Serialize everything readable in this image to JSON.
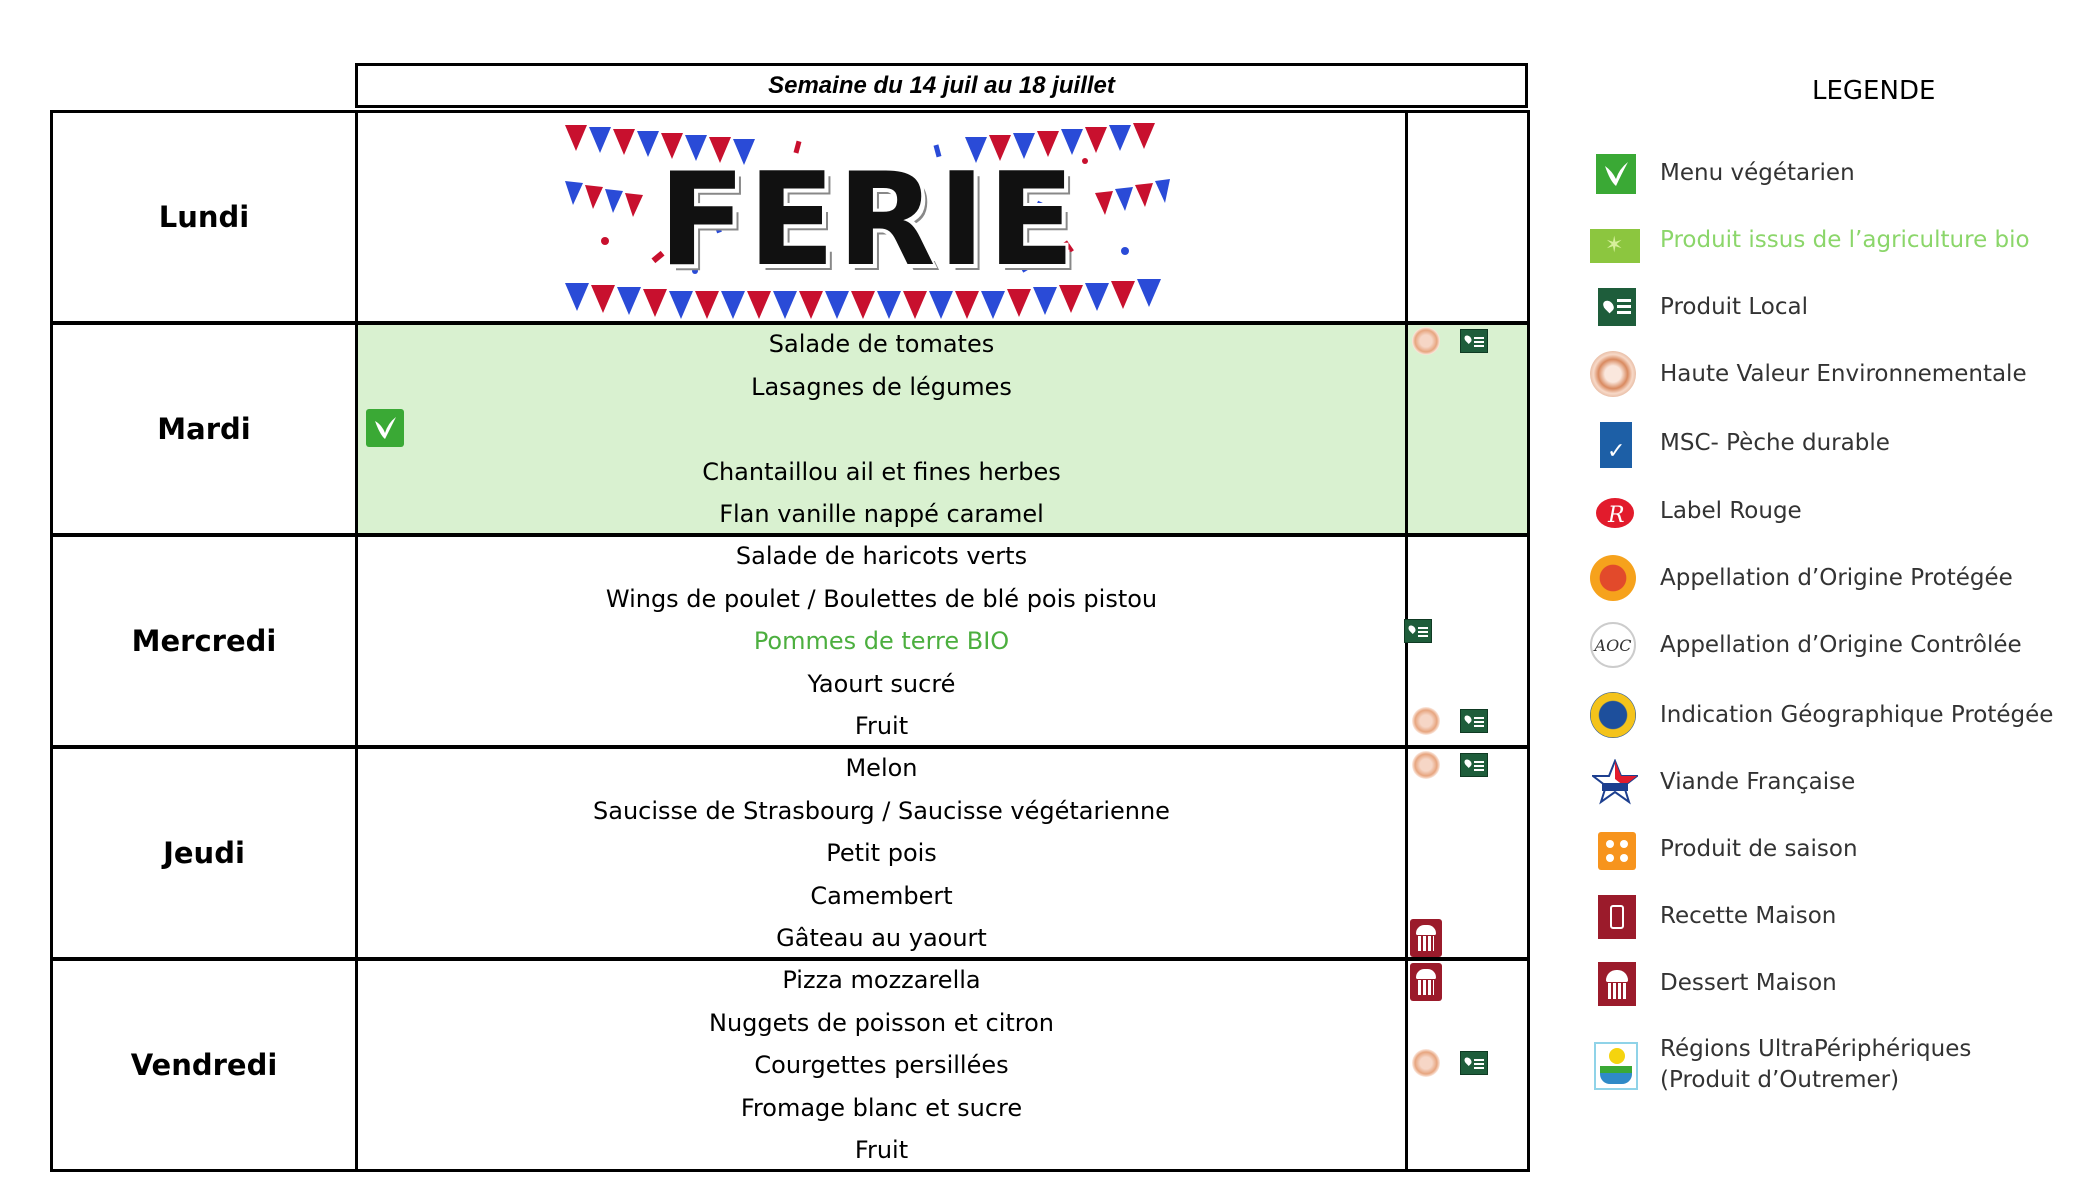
{
  "week_header": "Semaine du 14 juil au 18 juillet",
  "days": [
    {
      "name": "Lundi",
      "holiday": "FERIE",
      "dishes": []
    },
    {
      "name": "Mardi",
      "dishes": [
        "Salade de tomates",
        "Lasagnes de légumes",
        "",
        "Chantaillou ail et fines herbes",
        "Flan vanille nappé caramel"
      ]
    },
    {
      "name": "Mercredi",
      "dishes": [
        "Salade de haricots verts",
        "Wings de poulet / Boulettes de blé pois pistou",
        "Pommes de terre BIO",
        "Yaourt sucré",
        "Fruit"
      ]
    },
    {
      "name": "Jeudi",
      "dishes": [
        "Melon",
        "Saucisse de Strasbourg / Saucisse végétarienne",
        "Petit pois",
        "Camembert",
        "Gâteau au yaourt"
      ]
    },
    {
      "name": "Vendredi",
      "dishes": [
        "Pizza mozzarella",
        "Nuggets de poisson et citron",
        "Courgettes persillées",
        "Fromage blanc et sucre",
        "Fruit"
      ]
    }
  ],
  "legend": {
    "title": "LEGENDE",
    "items": [
      {
        "label": "Menu végétarien",
        "icon": "vegetarian-icon"
      },
      {
        "label": "Produit issus de l’agriculture bio",
        "icon": "organic-icon",
        "color": "#8bd66a"
      },
      {
        "label": "Produit Local",
        "icon": "local-product-icon"
      },
      {
        "label": "Haute Valeur Environnementale",
        "icon": "hve-icon"
      },
      {
        "label": "MSC- Pèche durable",
        "icon": "msc-icon"
      },
      {
        "label": "Label Rouge",
        "icon": "label-rouge-icon"
      },
      {
        "label": "Appellation d’Origine Protégée",
        "icon": "aop-icon"
      },
      {
        "label": "Appellation d’Origine Contrôlée",
        "icon": "aoc-icon"
      },
      {
        "label": "Indication Géographique Protégée",
        "icon": "igp-icon"
      },
      {
        "label": "Viande Française",
        "icon": "french-meat-icon"
      },
      {
        "label": "Produit de saison",
        "icon": "seasonal-icon"
      },
      {
        "label": "Recette Maison",
        "icon": "homemade-recipe-icon"
      },
      {
        "label": "Dessert Maison",
        "icon": "homemade-dessert-icon"
      },
      {
        "label": "Régions UltraPériphériques",
        "label2": "(Produit d’Outremer)",
        "icon": "outermost-regions-icon"
      }
    ],
    "aoc_glyph": "AOC"
  },
  "colors": {
    "vegetarian_row": "#d9f1d0",
    "bio_text": "#4caf3f",
    "green_icon": "#3aa935",
    "dessert_icon": "#9b1b2b"
  }
}
